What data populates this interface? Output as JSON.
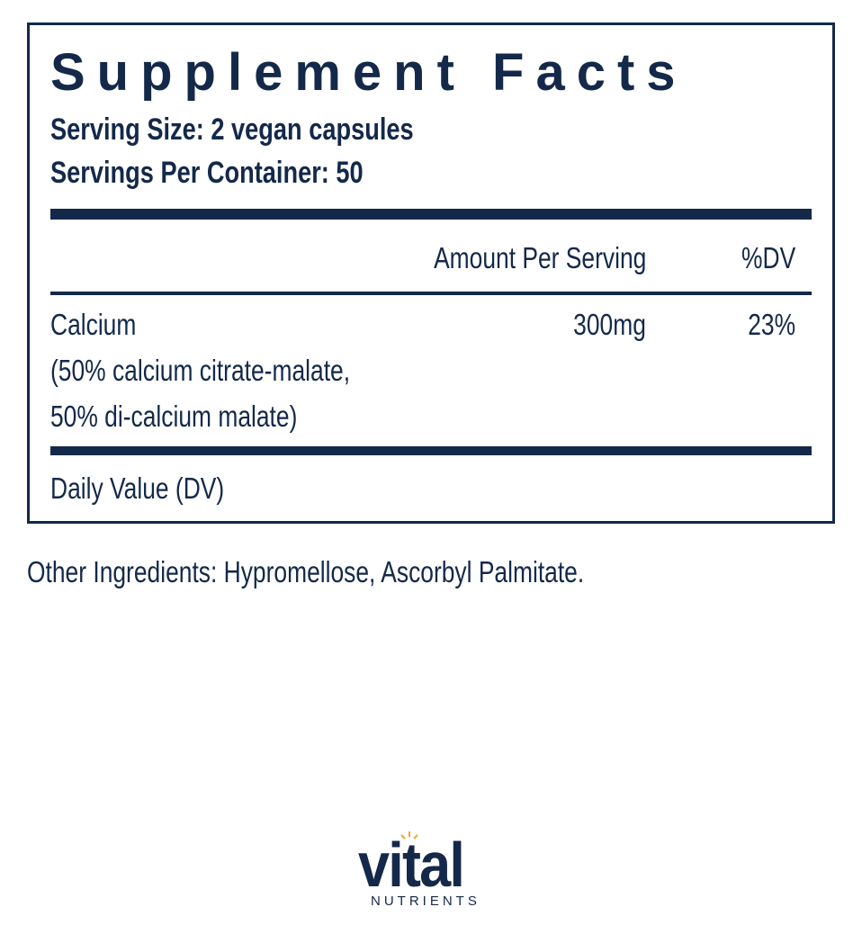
{
  "header": {
    "title": "Supplement Facts",
    "serving_size": "Serving Size: 2 vegan capsules",
    "servings_per_container": "Servings Per Container: 50"
  },
  "table": {
    "columns": [
      "Amount Per Serving",
      "%DV"
    ],
    "rows": [
      {
        "name": "Calcium",
        "details": [
          "(50% calcium citrate-malate,",
          "50% di-calcium malate)"
        ],
        "amount": "300mg",
        "dv": "23%"
      }
    ],
    "footnote": "Daily Value (DV)"
  },
  "other_ingredients": "Other Ingredients: Hypromellose, Ascorbyl Palmitate.",
  "logo": {
    "name": "vital",
    "tagline": "NUTRIENTS"
  }
}
